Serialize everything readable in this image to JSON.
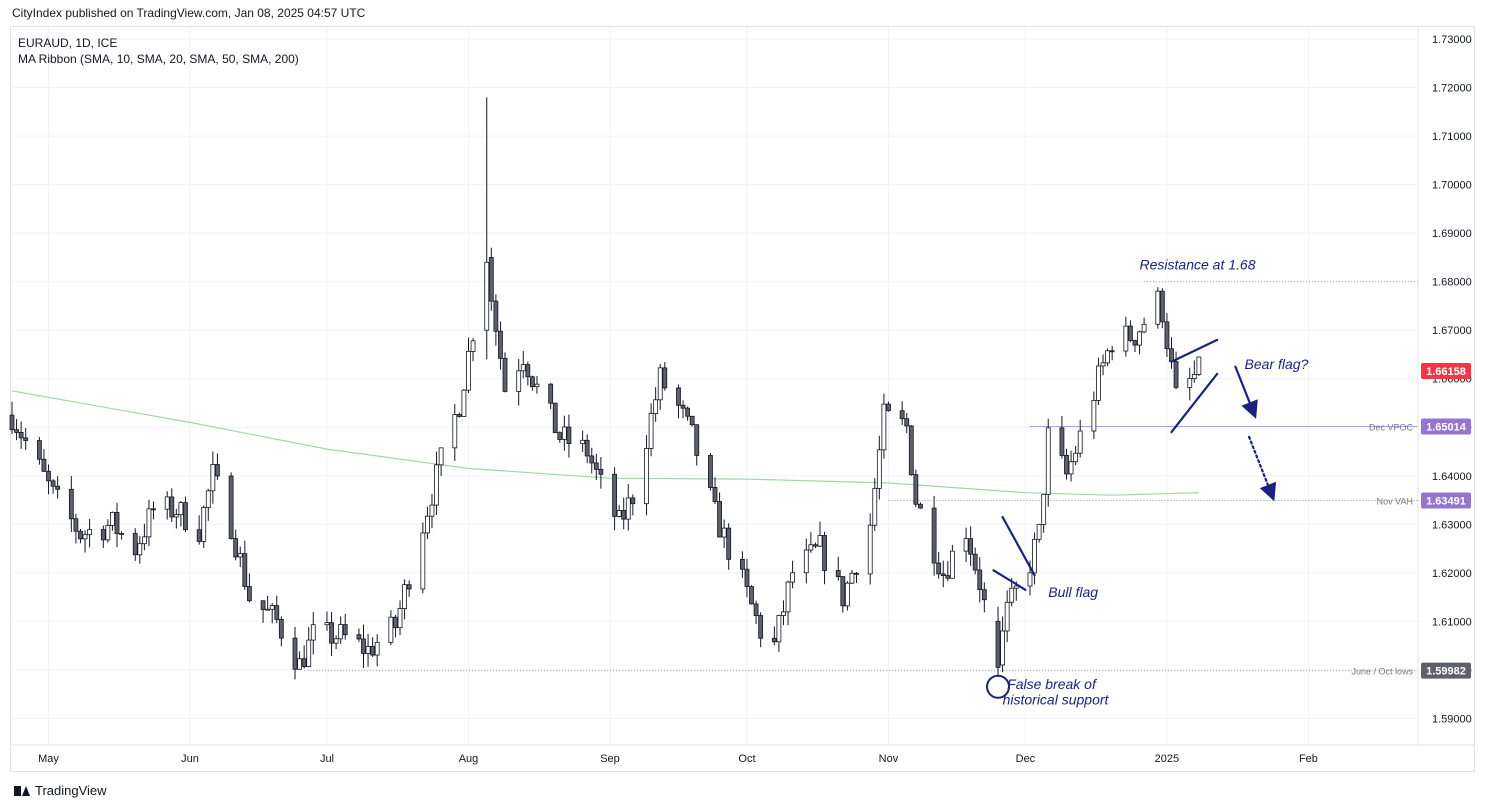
{
  "header": {
    "published_line": "CityIndex published on TradingView.com, Jan 08, 2025 04:57 UTC"
  },
  "legend": {
    "symbol_line": "EURAUD, 1D, ICE",
    "indicator_line": "MA Ribbon (SMA, 10, SMA, 20, SMA, 50, SMA, 200)"
  },
  "footer": {
    "brand": "TradingView"
  },
  "colors": {
    "candle_up": "#ffffff",
    "candle_down": "#5d606b",
    "wick": "#131722",
    "sma200": "#a5d6a7",
    "annotation": "#1a237e",
    "last_price_bg": "#f23645",
    "vpoc_line": "#b39ddb",
    "vpoc_label_bg": "#9575cd",
    "level_label_bg": "#5d606b"
  },
  "chart_data": {
    "type": "candlestick",
    "title": "",
    "xlabel": "",
    "ylabel": "",
    "ylim": [
      1.5845,
      1.7325
    ],
    "xlim": [
      "2024-04-23",
      "2025-02-25"
    ],
    "y_ticks": [
      "1.59000",
      "1.60000",
      "1.61000",
      "1.62000",
      "1.63000",
      "1.64000",
      "1.65000",
      "1.66000",
      "1.67000",
      "1.68000",
      "1.69000",
      "1.70000",
      "1.71000",
      "1.72000",
      "1.73000"
    ],
    "x_ticks": [
      {
        "label": "May",
        "date": "2024-05-01"
      },
      {
        "label": "Jun",
        "date": "2024-06-01"
      },
      {
        "label": "Jul",
        "date": "2024-07-01"
      },
      {
        "label": "Aug",
        "date": "2024-08-01"
      },
      {
        "label": "Sep",
        "date": "2024-09-01"
      },
      {
        "label": "Oct",
        "date": "2024-10-01"
      },
      {
        "label": "Nov",
        "date": "2024-11-01"
      },
      {
        "label": "Dec",
        "date": "2024-12-01"
      },
      {
        "label": "2025",
        "date": "2025-01-01"
      },
      {
        "label": "Feb",
        "date": "2025-02-01"
      }
    ],
    "anchors": [
      [
        "2024-04-23",
        1.6525
      ],
      [
        "2024-05-02",
        1.636
      ],
      [
        "2024-05-08",
        1.628
      ],
      [
        "2024-05-15",
        1.63
      ],
      [
        "2024-05-20",
        1.625
      ],
      [
        "2024-05-24",
        1.633
      ],
      [
        "2024-05-29",
        1.633
      ],
      [
        "2024-06-03",
        1.629
      ],
      [
        "2024-06-06",
        1.64
      ],
      [
        "2024-06-10",
        1.63
      ],
      [
        "2024-06-14",
        1.615
      ],
      [
        "2024-06-20",
        1.61
      ],
      [
        "2024-06-25",
        1.601
      ],
      [
        "2024-06-28",
        1.607
      ],
      [
        "2024-07-04",
        1.607
      ],
      [
        "2024-07-10",
        1.604
      ],
      [
        "2024-07-16",
        1.609
      ],
      [
        "2024-07-22",
        1.63
      ],
      [
        "2024-07-26",
        1.643
      ],
      [
        "2024-07-30",
        1.655
      ],
      [
        "2024-08-05",
        1.685
      ],
      [
        "2024-08-06",
        1.678
      ],
      [
        "2024-08-09",
        1.658
      ],
      [
        "2024-08-13",
        1.665
      ],
      [
        "2024-08-16",
        1.658
      ],
      [
        "2024-08-21",
        1.648
      ],
      [
        "2024-08-27",
        1.645
      ],
      [
        "2024-08-30",
        1.638
      ],
      [
        "2024-09-03",
        1.63
      ],
      [
        "2024-09-06",
        1.636
      ],
      [
        "2024-09-12",
        1.66
      ],
      [
        "2024-09-16",
        1.654
      ],
      [
        "2024-09-19",
        1.648
      ],
      [
        "2024-09-24",
        1.632
      ],
      [
        "2024-09-30",
        1.618
      ],
      [
        "2024-10-04",
        1.608
      ],
      [
        "2024-10-07",
        1.605
      ],
      [
        "2024-10-11",
        1.62
      ],
      [
        "2024-10-17",
        1.625
      ],
      [
        "2024-10-22",
        1.615
      ],
      [
        "2024-10-28",
        1.63
      ],
      [
        "2024-10-31",
        1.652
      ],
      [
        "2024-11-05",
        1.65
      ],
      [
        "2024-11-07",
        1.635
      ],
      [
        "2024-11-11",
        1.625
      ],
      [
        "2024-11-13",
        1.62
      ],
      [
        "2024-11-18",
        1.629
      ],
      [
        "2024-11-21",
        1.618
      ],
      [
        "2024-11-25",
        1.5995
      ],
      [
        "2024-11-27",
        1.612
      ],
      [
        "2024-12-02",
        1.622
      ],
      [
        "2024-12-04",
        1.628
      ],
      [
        "2024-12-06",
        1.648
      ],
      [
        "2024-12-10",
        1.64
      ],
      [
        "2024-12-13",
        1.648
      ],
      [
        "2024-12-17",
        1.66
      ],
      [
        "2024-12-20",
        1.668
      ],
      [
        "2024-12-25",
        1.669
      ],
      [
        "2024-12-30",
        1.676
      ],
      [
        "2024-12-31",
        1.674
      ],
      [
        "2025-01-02",
        1.662
      ],
      [
        "2025-01-03",
        1.656
      ],
      [
        "2025-01-08",
        1.6615
      ]
    ],
    "annotations": {
      "resistance": "Resistance at 1.68",
      "bear_flag": "Bear flag?",
      "bull_flag": "Bull flag",
      "false_break_line1": "False break of",
      "false_break_line2": "historical support"
    },
    "levels": [
      {
        "name": "last",
        "label": "",
        "value": 1.66158,
        "text": "1.66158"
      },
      {
        "name": "dec-vpoc",
        "label": "Dec VPOC",
        "value": 1.65014,
        "text": "1.65014"
      },
      {
        "name": "nov-vah",
        "label": "Nov VAH",
        "value": 1.63491,
        "text": "1.63491"
      },
      {
        "name": "june-oct-lows",
        "label": "June / Oct lows",
        "value": 1.59982,
        "text": "1.59982"
      },
      {
        "name": "resistance",
        "label": "",
        "value": 1.68,
        "text": ""
      }
    ]
  }
}
